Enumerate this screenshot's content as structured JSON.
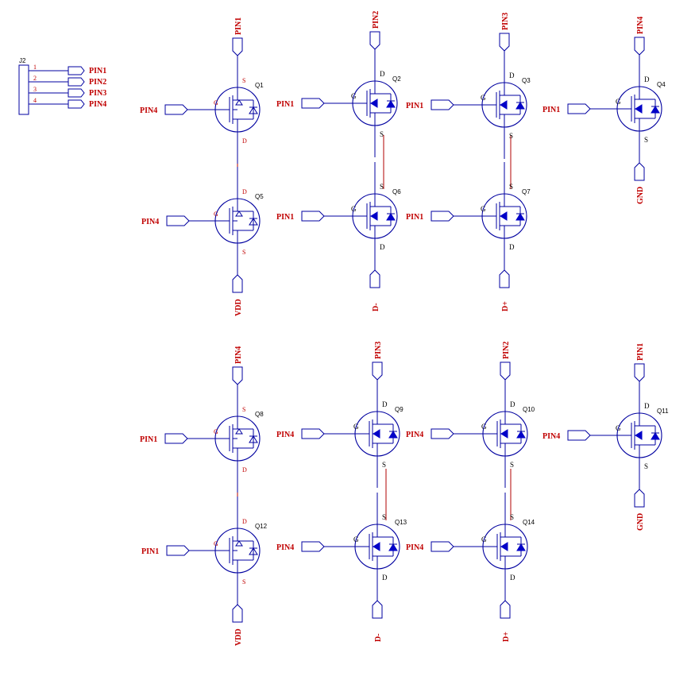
{
  "connector": {
    "ref": "J2",
    "pins": [
      {
        "num": "1",
        "net": "PIN1"
      },
      {
        "num": "2",
        "net": "PIN2"
      },
      {
        "num": "3",
        "net": "PIN3"
      },
      {
        "num": "4",
        "net": "PIN4"
      }
    ]
  },
  "transistors": [
    {
      "ref": "Q1",
      "top": "S",
      "bottom": "D",
      "gate": "G",
      "gate_net": "PIN4",
      "top_net": "PIN1"
    },
    {
      "ref": "Q5",
      "top": "D",
      "bottom": "S",
      "gate": "G",
      "gate_net": "PIN4",
      "bottom_net": "VDD"
    },
    {
      "ref": "Q2",
      "top": "D",
      "bottom": "S",
      "gate": "G",
      "gate_net": "PIN1",
      "top_net": "PIN2"
    },
    {
      "ref": "Q6",
      "top": "S",
      "bottom": "D",
      "gate": "G",
      "gate_net": "PIN1",
      "bottom_net": "D-"
    },
    {
      "ref": "Q3",
      "top": "D",
      "bottom": "S",
      "gate": "G",
      "gate_net": "PIN1",
      "top_net": "PIN3"
    },
    {
      "ref": "Q7",
      "top": "S",
      "bottom": "D",
      "gate": "G",
      "gate_net": "PIN1",
      "bottom_net": "D+"
    },
    {
      "ref": "Q4",
      "top": "D",
      "bottom": "S",
      "gate": "G",
      "gate_net": "PIN1",
      "top_net": "PIN4",
      "bottom_net": "GND"
    },
    {
      "ref": "Q8",
      "top": "S",
      "bottom": "D",
      "gate": "G",
      "gate_net": "PIN1",
      "top_net": "PIN4"
    },
    {
      "ref": "Q12",
      "top": "D",
      "bottom": "S",
      "gate": "G",
      "gate_net": "PIN1",
      "bottom_net": "VDD"
    },
    {
      "ref": "Q9",
      "top": "D",
      "bottom": "S",
      "gate": "G",
      "gate_net": "PIN4",
      "top_net": "PIN3"
    },
    {
      "ref": "Q13",
      "top": "S",
      "bottom": "D",
      "gate": "G",
      "gate_net": "PIN4",
      "bottom_net": "D-"
    },
    {
      "ref": "Q10",
      "top": "D",
      "bottom": "S",
      "gate": "G",
      "gate_net": "PIN4",
      "top_net": "PIN2"
    },
    {
      "ref": "Q14",
      "top": "S",
      "bottom": "D",
      "gate": "G",
      "gate_net": "PIN4",
      "bottom_net": "D+"
    },
    {
      "ref": "Q11",
      "top": "D",
      "bottom": "S",
      "gate": "G",
      "gate_net": "PIN4",
      "top_net": "PIN1",
      "bottom_net": "GND"
    }
  ],
  "colors": {
    "wire": "#0000a0",
    "label": "#c00000",
    "link": "#b00000",
    "symbol": "#0000c8"
  }
}
